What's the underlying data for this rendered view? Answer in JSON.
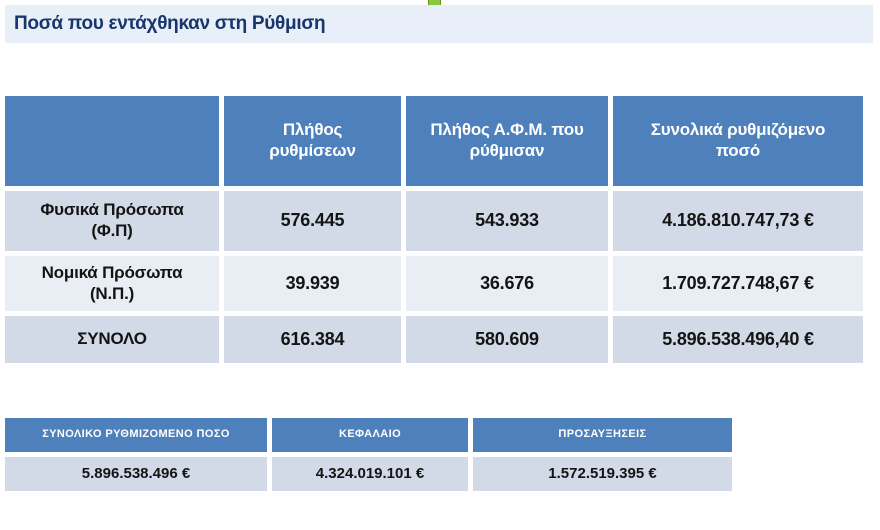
{
  "title": "Ποσά που εντάχθηκαν στη Ρύθμιση",
  "colors": {
    "header_blue": "#4e80bc",
    "row_light_blue": "#d2d9e7",
    "row_pale_blue": "#e9eef5",
    "title_bar_bg": "#e9eff8",
    "title_text": "#17366b",
    "handle_green": "#8dc63f"
  },
  "main_table": {
    "headers": [
      {
        "line1": "",
        "line2": ""
      },
      {
        "line1": "Πλήθος",
        "line2": "ρυθμίσεων"
      },
      {
        "line1": "Πλήθος Α.Φ.Μ. που",
        "line2": "ρύθμισαν"
      },
      {
        "line1": "Συνολικά ρυθμιζόμενο",
        "line2": "ποσό"
      }
    ],
    "rows": [
      {
        "label_line1": "Φυσικά Πρόσωπα",
        "label_line2": "(Φ.Π)",
        "count_regulations": "576.445",
        "count_afm": "543.933",
        "total_amount": "4.186.810.747,73 €"
      },
      {
        "label_line1": "Νομικά Πρόσωπα",
        "label_line2": "(Ν.Π.)",
        "count_regulations": "39.939",
        "count_afm": "36.676",
        "total_amount": "1.709.727.748,67 €"
      },
      {
        "label_line1": "ΣΥΝΟΛΟ",
        "label_line2": "",
        "count_regulations": "616.384",
        "count_afm": "580.609",
        "total_amount": "5.896.538.496,40 €"
      }
    ]
  },
  "summary_table": {
    "headers": [
      "ΣΥΝΟΛΙΚΟ ΡΥΘΜΙΖΟΜΕΝΟ ΠΟΣΟ",
      "ΚΕΦΑΛΑΙΟ",
      "ΠΡΟΣΑΥΞΗΣΕΙΣ"
    ],
    "values": [
      "5.896.538.496 €",
      "4.324.019.101 €",
      "1.572.519.395 €"
    ]
  }
}
